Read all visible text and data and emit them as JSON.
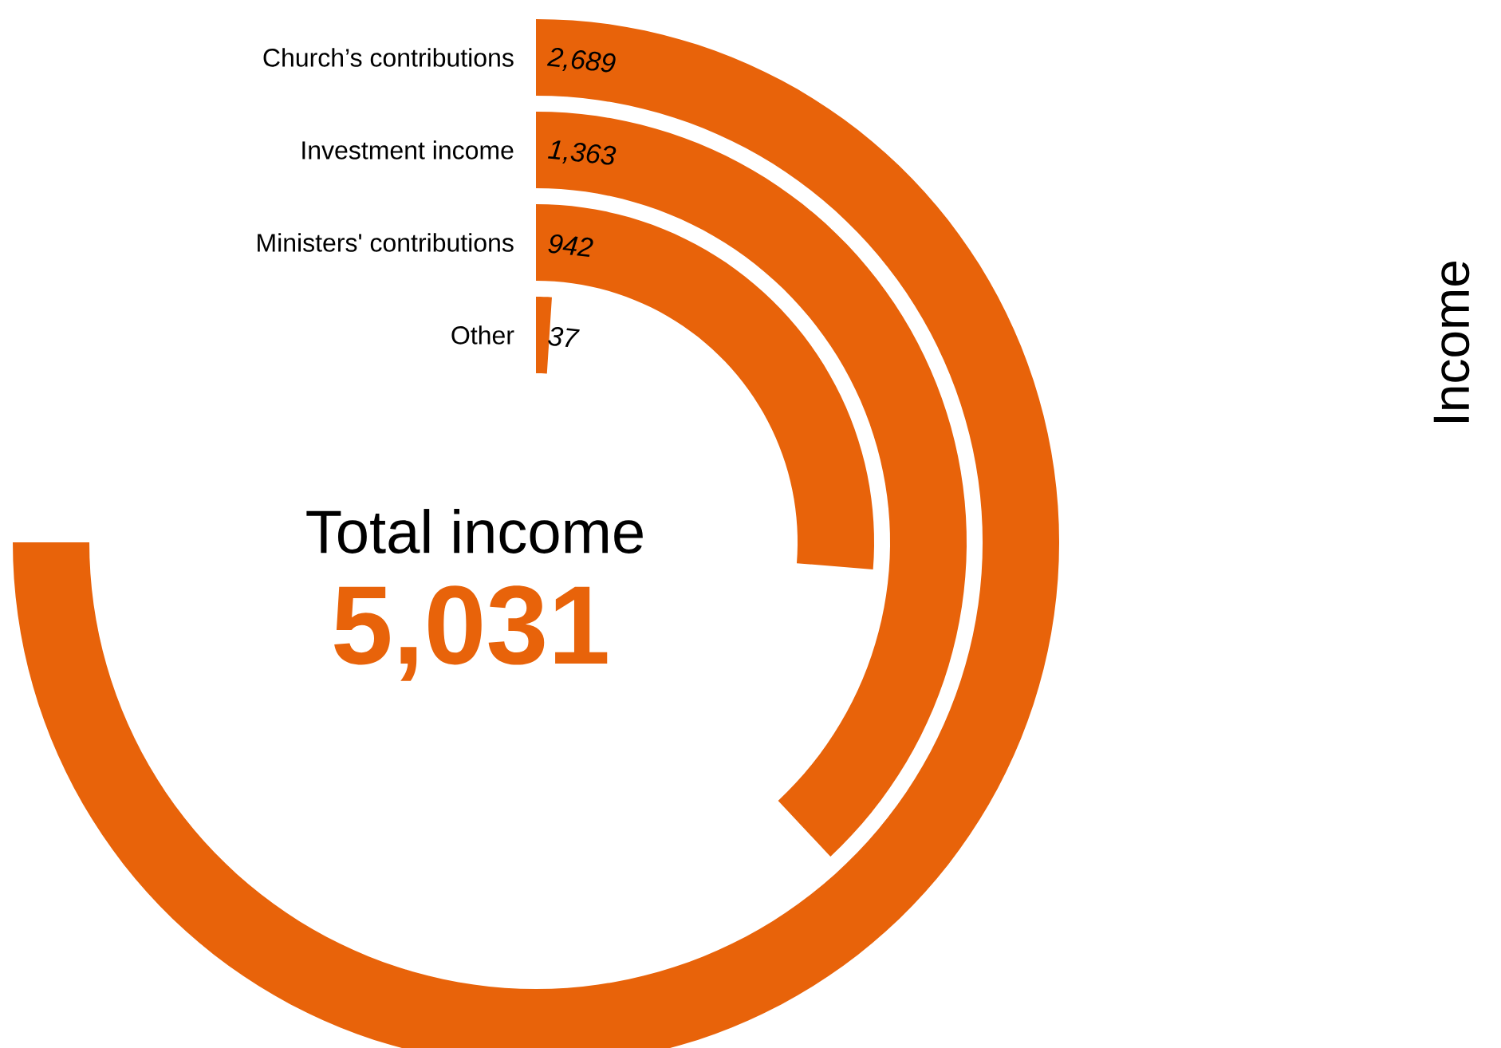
{
  "chart_data": {
    "type": "other",
    "categories": [
      "Church’s contributions",
      "Investment income",
      "Ministers' contributions",
      "Other"
    ],
    "values": [
      2689,
      1363,
      942,
      37
    ],
    "value_labels": [
      "2,689",
      "1,363",
      "942",
      "37"
    ],
    "color": "#e8630a",
    "annotations": [
      "Total income",
      "5,031",
      "Income"
    ]
  }
}
